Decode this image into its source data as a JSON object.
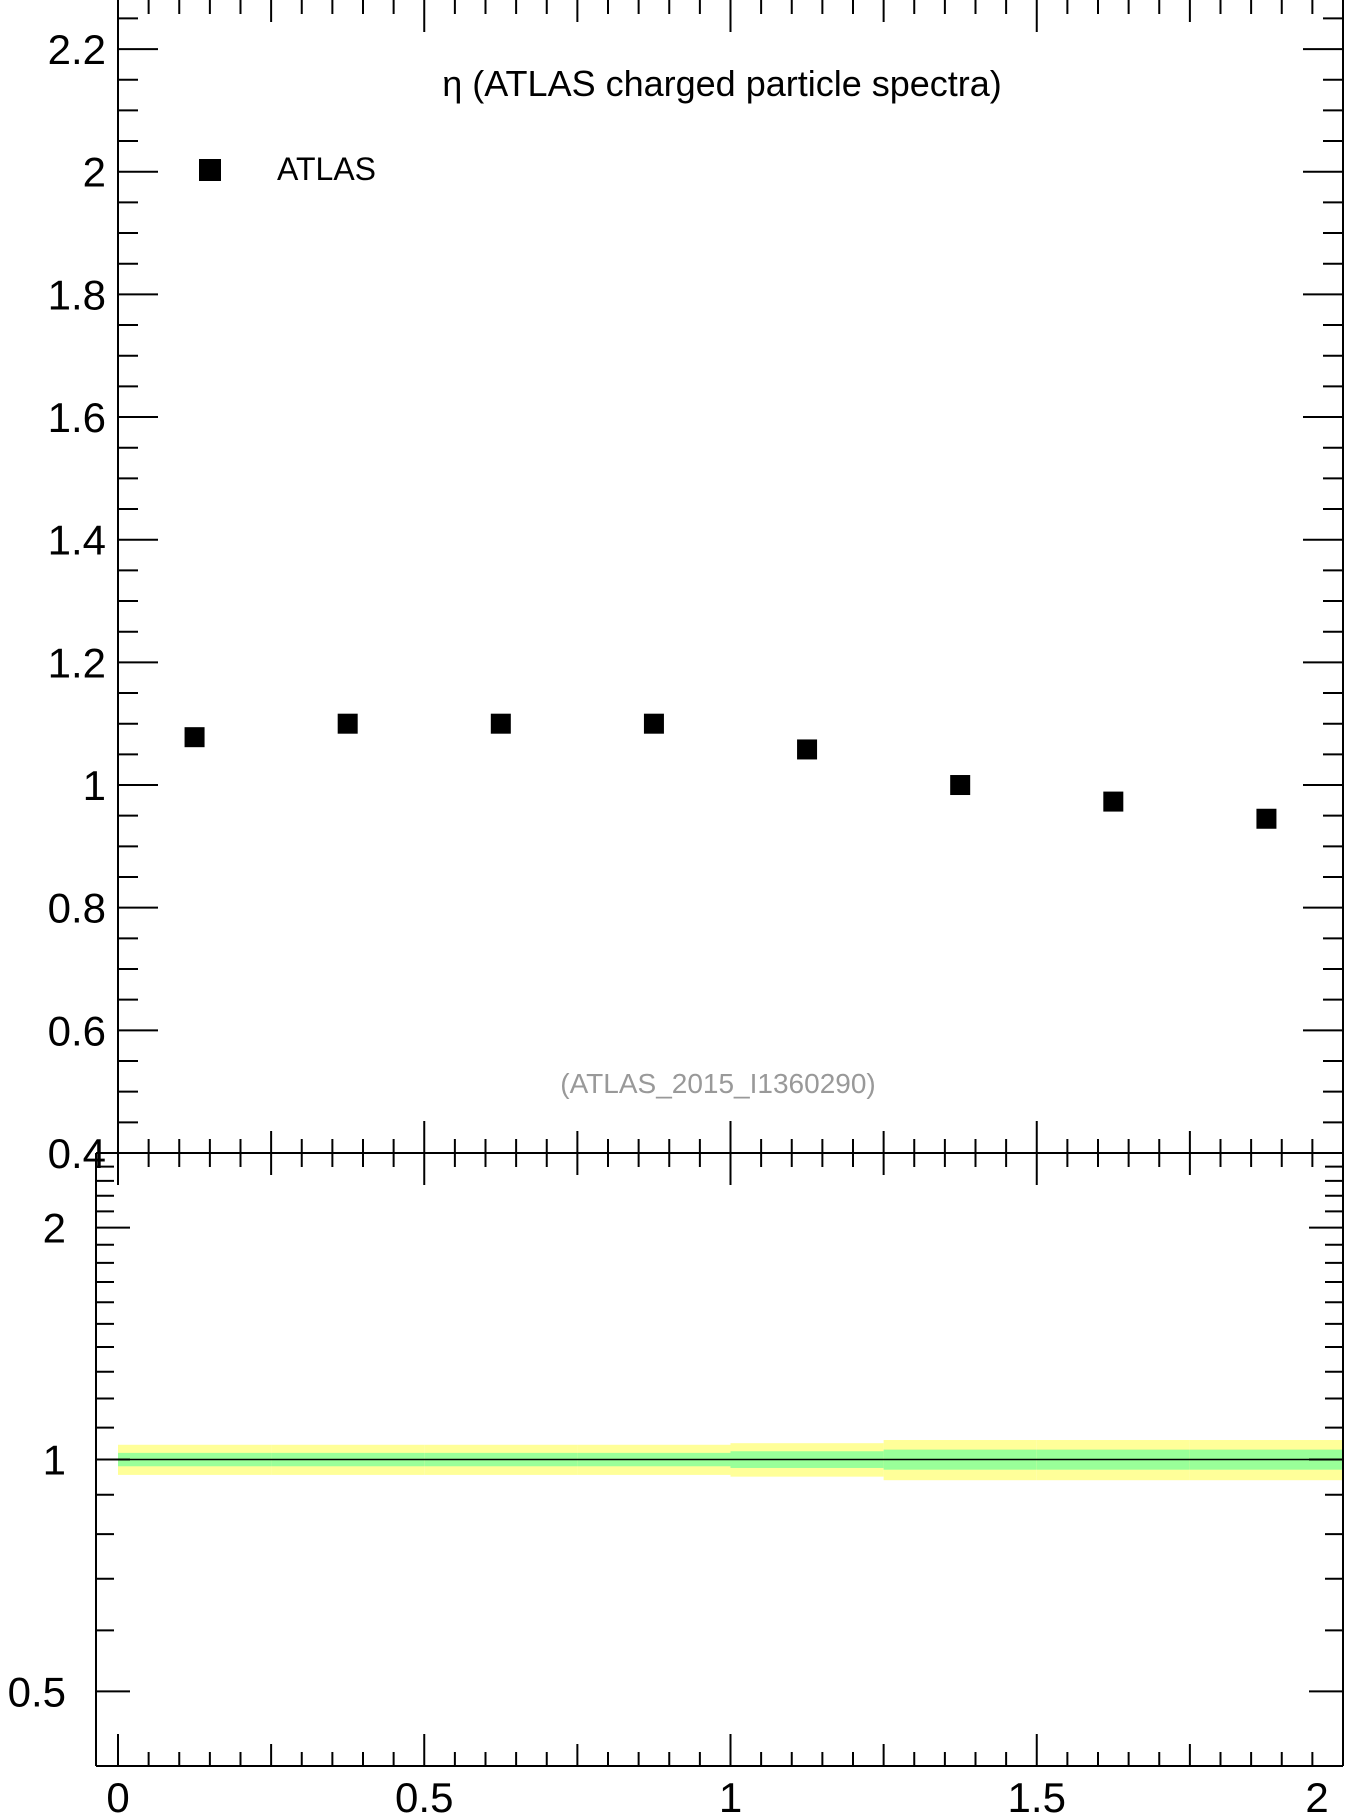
{
  "chart_data": [
    {
      "type": "scatter",
      "title": "η (ATLAS charged particle spectra)",
      "annotation": "(ATLAS_2015_I1360290)",
      "xlabel": "",
      "ylabel": "",
      "xlim": [
        0,
        2
      ],
      "ylim": [
        0.4,
        2.28
      ],
      "y_ticks": [
        0.4,
        0.6,
        0.8,
        1,
        1.2,
        1.4,
        1.6,
        1.8,
        2,
        2.2
      ],
      "y_tick_labels": [
        "0.4",
        "0.6",
        "0.8",
        "1",
        "1.2",
        "1.4",
        "1.6",
        "1.8",
        "2",
        "2.2"
      ],
      "legend": {
        "placement": "top-left",
        "entries": [
          "ATLAS"
        ]
      },
      "grid": false,
      "series": [
        {
          "name": "ATLAS",
          "color": "#000000",
          "marker": "square",
          "x": [
            0.125,
            0.375,
            0.625,
            0.875,
            1.125,
            1.375,
            1.625,
            1.875
          ],
          "y": [
            1.078,
            1.1,
            1.1,
            1.1,
            1.058,
            1.0,
            0.973,
            0.945
          ]
        }
      ]
    },
    {
      "type": "area",
      "title": "",
      "xlabel": "",
      "ylabel": "",
      "xlim": [
        0,
        2
      ],
      "ylim": [
        0.4,
        2.5
      ],
      "y_scale": "log",
      "x_ticks": [
        0,
        0.5,
        1,
        1.5,
        2
      ],
      "x_tick_labels": [
        "0",
        "0.5",
        "1",
        "1.5",
        "2"
      ],
      "y_ticks": [
        0.5,
        1,
        2
      ],
      "y_tick_labels": [
        "0.5",
        "1",
        "2"
      ],
      "reference_line": 1,
      "grid": false,
      "bins": [
        0,
        0.25,
        0.5,
        0.75,
        1.0,
        1.25,
        1.5,
        1.75,
        2.0
      ],
      "inner_band": {
        "color": "#99ff99",
        "lower": [
          0.98,
          0.98,
          0.98,
          0.98,
          0.975,
          0.97,
          0.97,
          0.97
        ],
        "upper": [
          1.02,
          1.02,
          1.02,
          1.02,
          1.025,
          1.03,
          1.03,
          1.03
        ]
      },
      "outer_band": {
        "color": "#ffff99",
        "lower": [
          0.955,
          0.955,
          0.955,
          0.955,
          0.95,
          0.94,
          0.94,
          0.94
        ],
        "upper": [
          1.045,
          1.045,
          1.045,
          1.045,
          1.05,
          1.06,
          1.06,
          1.06
        ]
      }
    }
  ]
}
